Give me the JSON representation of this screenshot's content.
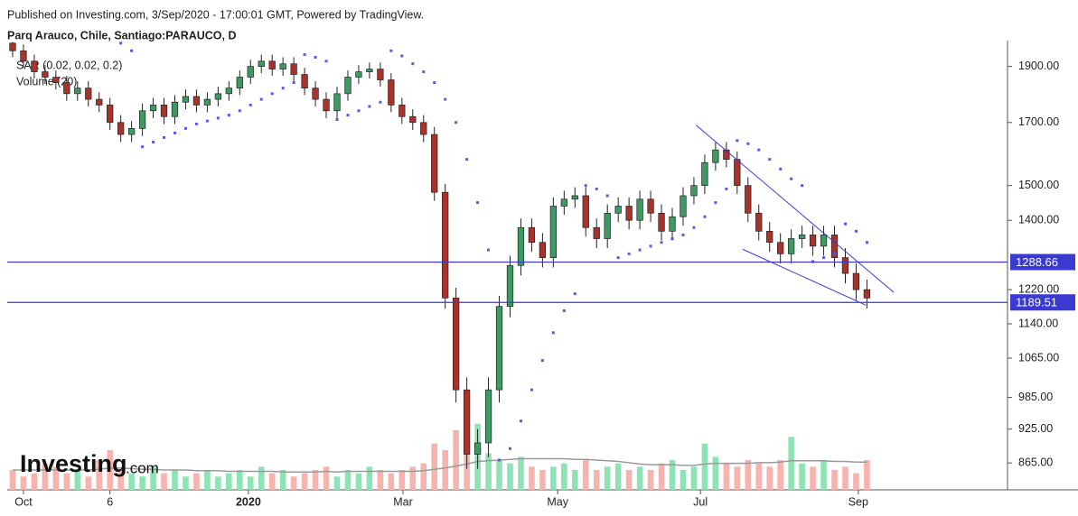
{
  "branding": {
    "published": "Published on Investing.com, 3/Sep/2020 - 17:00:01 GMT, Powered by TradingView.",
    "logo": "Investing",
    "logo_suffix": ".com"
  },
  "chart_data": {
    "type": "candlestick",
    "title": "Parq Arauco, Chile, Santiago:PARAUCO, D",
    "indicators": [
      "SAR (0.02, 0.02, 0.2)",
      "Volume (20)"
    ],
    "log_scale": true,
    "ylim": [
      820,
      2000
    ],
    "yticks": [
      {
        "value": 865,
        "label": "865.00"
      },
      {
        "value": 925,
        "label": "925.00"
      },
      {
        "value": 985,
        "label": "985.00"
      },
      {
        "value": 1065,
        "label": "1065.00"
      },
      {
        "value": 1140,
        "label": "1140.00"
      },
      {
        "value": 1220,
        "label": "1220.00"
      },
      {
        "value": 1400,
        "label": "1400.00"
      },
      {
        "value": 1500,
        "label": "1500.00"
      },
      {
        "value": 1700,
        "label": "1700.00"
      },
      {
        "value": 1900,
        "label": "1900.00"
      }
    ],
    "xlim": [
      -0.5,
      92
    ],
    "xticks": [
      {
        "value": 1,
        "label": "Oct"
      },
      {
        "value": 9,
        "label": "6"
      },
      {
        "value": 21.8,
        "label": "2020"
      },
      {
        "value": 36.1,
        "label": "Mar"
      },
      {
        "value": 50.4,
        "label": "May"
      },
      {
        "value": 63.6,
        "label": "Jul"
      },
      {
        "value": 78.2,
        "label": "Sep"
      }
    ],
    "up_color": "#3d9a62",
    "down_color": "#a8332c",
    "open": [
      1990,
      1960,
      1920,
      1880,
      1860,
      1840,
      1800,
      1820,
      1780,
      1760,
      1700,
      1660,
      1680,
      1740,
      1760,
      1720,
      1770,
      1790,
      1760,
      1780,
      1800,
      1820,
      1860,
      1900,
      1920,
      1890,
      1910,
      1870,
      1820,
      1780,
      1740,
      1800,
      1860,
      1880,
      1890,
      1850,
      1760,
      1720,
      1700,
      1660,
      1480,
      1200,
      1000,
      880,
      900,
      1000,
      1180,
      1280,
      1380,
      1340,
      1300,
      1440,
      1460,
      1470,
      1380,
      1350,
      1420,
      1440,
      1400,
      1460,
      1420,
      1370,
      1410,
      1470,
      1500,
      1570,
      1610,
      1580,
      1500,
      1420,
      1370,
      1340,
      1310,
      1350,
      1360,
      1330,
      1360,
      1300,
      1260,
      1220
    ],
    "high": [
      1995,
      1985,
      1945,
      1905,
      1885,
      1865,
      1845,
      1845,
      1805,
      1785,
      1725,
      1705,
      1765,
      1785,
      1785,
      1795,
      1815,
      1815,
      1805,
      1825,
      1845,
      1885,
      1925,
      1945,
      1945,
      1935,
      1935,
      1895,
      1845,
      1805,
      1825,
      1885,
      1905,
      1915,
      1915,
      1875,
      1785,
      1745,
      1725,
      1685,
      1505,
      1225,
      1025,
      925,
      1025,
      1205,
      1305,
      1405,
      1405,
      1365,
      1465,
      1485,
      1495,
      1495,
      1405,
      1445,
      1465,
      1465,
      1485,
      1485,
      1445,
      1435,
      1495,
      1525,
      1595,
      1635,
      1635,
      1605,
      1525,
      1445,
      1395,
      1365,
      1375,
      1385,
      1385,
      1385,
      1385,
      1325,
      1285,
      1245
    ],
    "low": [
      1935,
      1895,
      1855,
      1835,
      1815,
      1775,
      1775,
      1755,
      1735,
      1675,
      1635,
      1635,
      1655,
      1715,
      1695,
      1695,
      1745,
      1735,
      1735,
      1755,
      1775,
      1795,
      1835,
      1875,
      1865,
      1865,
      1845,
      1795,
      1755,
      1715,
      1715,
      1775,
      1835,
      1855,
      1825,
      1735,
      1695,
      1675,
      1635,
      1455,
      1175,
      975,
      855,
      855,
      875,
      975,
      1155,
      1255,
      1315,
      1275,
      1275,
      1415,
      1435,
      1355,
      1325,
      1325,
      1395,
      1375,
      1375,
      1395,
      1345,
      1345,
      1385,
      1445,
      1475,
      1545,
      1555,
      1475,
      1395,
      1345,
      1315,
      1285,
      1285,
      1325,
      1305,
      1305,
      1275,
      1235,
      1195,
      1175
    ],
    "close": [
      1960,
      1920,
      1880,
      1860,
      1840,
      1800,
      1820,
      1780,
      1760,
      1700,
      1660,
      1680,
      1740,
      1760,
      1720,
      1770,
      1790,
      1760,
      1780,
      1800,
      1820,
      1860,
      1900,
      1920,
      1890,
      1910,
      1870,
      1820,
      1780,
      1740,
      1800,
      1860,
      1880,
      1890,
      1850,
      1760,
      1720,
      1700,
      1660,
      1480,
      1200,
      1000,
      880,
      900,
      1000,
      1180,
      1280,
      1380,
      1340,
      1300,
      1440,
      1460,
      1470,
      1380,
      1350,
      1420,
      1440,
      1400,
      1460,
      1420,
      1370,
      1410,
      1470,
      1500,
      1570,
      1610,
      1580,
      1500,
      1420,
      1370,
      1340,
      1310,
      1350,
      1360,
      1330,
      1360,
      1300,
      1260,
      1220,
      1200
    ],
    "volume": {
      "up_color": "#8ee3b4",
      "down_color": "#f7b3ae",
      "ma_color": "#9a9a9a",
      "vlim": [
        0,
        150
      ],
      "values": [
        30,
        20,
        25,
        40,
        35,
        25,
        30,
        20,
        45,
        60,
        30,
        25,
        20,
        35,
        25,
        30,
        20,
        25,
        30,
        20,
        25,
        30,
        20,
        35,
        25,
        30,
        20,
        25,
        30,
        35,
        20,
        30,
        25,
        35,
        30,
        25,
        30,
        35,
        40,
        70,
        60,
        90,
        85,
        100,
        55,
        45,
        40,
        50,
        35,
        30,
        35,
        40,
        30,
        45,
        30,
        35,
        40,
        30,
        35,
        30,
        40,
        45,
        30,
        35,
        70,
        50,
        40,
        35,
        45,
        40,
        35,
        45,
        80,
        40,
        35,
        45,
        30,
        35,
        25,
        45
      ],
      "ma": [
        30,
        30,
        30,
        30,
        30,
        30,
        30,
        30,
        31,
        33,
        33,
        32,
        31,
        31,
        30,
        30,
        30,
        29,
        29,
        29,
        28,
        28,
        28,
        28,
        28,
        27,
        27,
        27,
        27,
        28,
        27,
        28,
        28,
        28,
        28,
        28,
        28,
        28,
        29,
        31,
        33,
        36,
        39,
        43,
        44,
        45,
        46,
        47,
        47,
        47,
        47,
        47,
        46,
        46,
        45,
        44,
        43,
        41,
        39,
        38,
        38,
        38,
        37,
        37,
        39,
        40,
        40,
        40,
        40,
        41,
        41,
        42,
        44,
        44,
        44,
        44,
        43,
        43,
        42,
        42
      ]
    },
    "sar": {
      "color": "#5a5ae0",
      "values": [
        null,
        null,
        null,
        null,
        null,
        null,
        null,
        null,
        null,
        null,
        1990,
        1960,
        1620,
        1635,
        1650,
        1665,
        1680,
        1695,
        1705,
        1715,
        1725,
        1740,
        1760,
        1780,
        1800,
        1820,
        1840,
        1945,
        1935,
        1920,
        1710,
        1725,
        1740,
        1755,
        1770,
        1960,
        1940,
        1910,
        1880,
        1840,
        1780,
        1700,
        1580,
        1450,
        1320,
        870,
        890,
        940,
        1000,
        1060,
        1120,
        1170,
        1210,
        1500,
        1490,
        1470,
        1300,
        1310,
        1320,
        1330,
        1340,
        1350,
        1360,
        1380,
        1410,
        1450,
        1490,
        1640,
        1630,
        1610,
        1580,
        1550,
        1520,
        1500,
        1290,
        1300,
        1310,
        1390,
        1370,
        1340
      ]
    },
    "hlines": [
      {
        "value": 1288.66,
        "color": "#3a3ad0"
      },
      {
        "value": 1189.51,
        "color": "#3a3ad0"
      }
    ],
    "trendlines": [
      {
        "x": [
          63.2,
          81.5
        ],
        "y": [
          1691,
          1213
        ],
        "color": "#3a3ad0"
      },
      {
        "x": [
          67.5,
          78.9
        ],
        "y": [
          1322,
          1183
        ],
        "color": "#3a3ad0"
      }
    ]
  }
}
